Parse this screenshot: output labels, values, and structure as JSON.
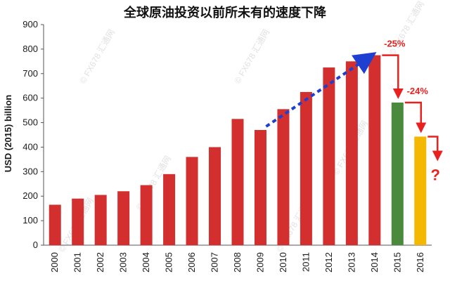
{
  "chart_data": {
    "type": "bar",
    "title": "全球原油投资以前所未有的速度下降",
    "ylabel": "USD (2015) billion",
    "xlabel": "",
    "ylim": [
      0,
      900
    ],
    "y_ticks": [
      0,
      100,
      200,
      300,
      400,
      500,
      600,
      700,
      800,
      900
    ],
    "categories": [
      "2000",
      "2001",
      "2002",
      "2003",
      "2004",
      "2005",
      "2006",
      "2007",
      "2008",
      "2009",
      "2010",
      "2011",
      "2012",
      "2013",
      "2014",
      "2015",
      "2016"
    ],
    "values": [
      165,
      190,
      205,
      220,
      245,
      290,
      360,
      400,
      515,
      470,
      555,
      625,
      725,
      750,
      775,
      582,
      443
    ],
    "bar_colors": [
      "#d32f2f",
      "#d32f2f",
      "#d32f2f",
      "#d32f2f",
      "#d32f2f",
      "#d32f2f",
      "#d32f2f",
      "#d32f2f",
      "#d32f2f",
      "#d32f2f",
      "#d32f2f",
      "#d32f2f",
      "#d32f2f",
      "#d32f2f",
      "#d32f2f",
      "#4a8a3d",
      "#f5b800"
    ],
    "grid": false,
    "annotations": [
      {
        "text": "-25%",
        "from": "2014",
        "to": "2015"
      },
      {
        "text": "-24%",
        "from": "2015",
        "to": "2016"
      },
      {
        "text": "?",
        "after": "2016"
      }
    ],
    "trend_arrow": {
      "from": "2009",
      "to": "2014",
      "color": "#1f3fd1"
    },
    "watermark": "© FX678 汇通网"
  }
}
